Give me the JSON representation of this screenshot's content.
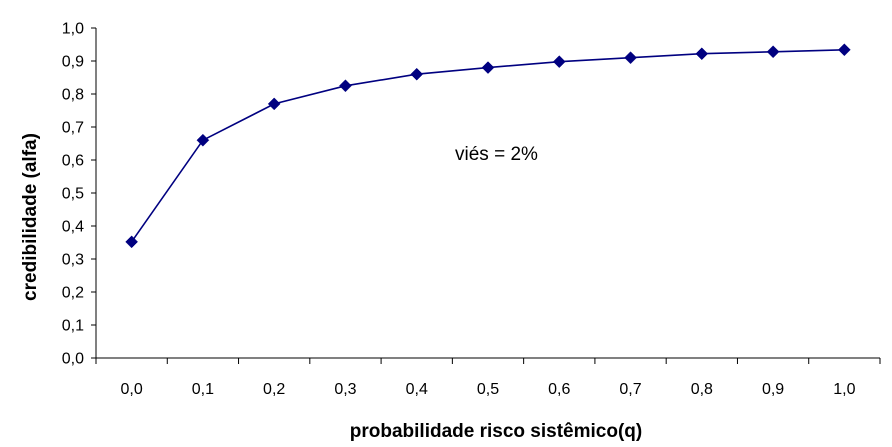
{
  "chart_data": {
    "type": "line",
    "xlabel": "probabilidade risco sistêmico(q)",
    "ylabel": "credibilidade (alfa)",
    "x_tick_labels": [
      "0,0",
      "0,1",
      "0,2",
      "0,3",
      "0,4",
      "0,5",
      "0,6",
      "0,7",
      "0,8",
      "0,9",
      "1,0"
    ],
    "y_tick_labels": [
      "0,0",
      "0,1",
      "0,2",
      "0,3",
      "0,4",
      "0,5",
      "0,6",
      "0,7",
      "0,8",
      "0,9",
      "1,0"
    ],
    "ylim": [
      0,
      1
    ],
    "grid": false,
    "annotation": "viés = 2%",
    "series": [
      {
        "x": [
          0.0,
          0.1,
          0.2,
          0.3,
          0.4,
          0.5,
          0.6,
          0.7,
          0.8,
          0.9,
          1.0
        ],
        "values": [
          0.352,
          0.66,
          0.77,
          0.825,
          0.86,
          0.88,
          0.898,
          0.91,
          0.922,
          0.928,
          0.934
        ],
        "color": "#000080",
        "marker": "diamond"
      }
    ]
  }
}
